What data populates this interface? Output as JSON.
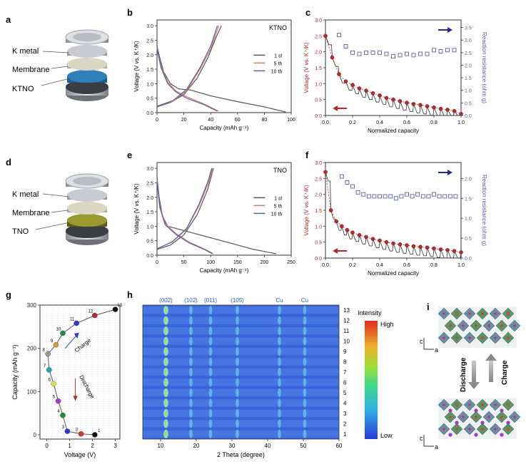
{
  "panel_letters": [
    "a",
    "b",
    "c",
    "d",
    "e",
    "f",
    "g",
    "h",
    "i"
  ],
  "cell_a": {
    "labels": [
      "K metal",
      "Membrane",
      "KTNO"
    ],
    "colors": {
      "top": "#b8bcc2",
      "membrane": "#c9c6b3",
      "electrode": "#2f7fb8"
    }
  },
  "cell_d": {
    "labels": [
      "K metal",
      "Membrane",
      "TNO"
    ],
    "colors": {
      "top": "#b8bcc2",
      "membrane": "#c9c6b3",
      "electrode": "#8a8a2e"
    }
  },
  "chart_data": [
    {
      "id": "b",
      "type": "line",
      "tag": "KTNO",
      "xlabel": "Capacity (mAh g⁻¹)",
      "ylabel": "Voltage (V vs. K⁺/K)",
      "xlim": [
        0,
        100
      ],
      "ylim": [
        0,
        3.2
      ],
      "xticks": [
        "0",
        "20",
        "40",
        "60",
        "80",
        "100"
      ],
      "yticks": [
        "0.0",
        "0.5",
        "1.0",
        "1.5",
        "2.0",
        "2.5",
        "3.0"
      ],
      "series": [
        {
          "name": "1 st",
          "color": "#555555",
          "discharge": [
            [
              0,
              2.3
            ],
            [
              2,
              1.9
            ],
            [
              5,
              1.4
            ],
            [
              10,
              1.0
            ],
            [
              16,
              0.82
            ],
            [
              25,
              0.78
            ],
            [
              40,
              0.58
            ],
            [
              60,
              0.38
            ],
            [
              80,
              0.2
            ],
            [
              96,
              0.02
            ]
          ],
          "charge": [
            [
              0,
              0.2
            ],
            [
              10,
              0.35
            ],
            [
              20,
              0.62
            ],
            [
              30,
              1.2
            ],
            [
              38,
              1.9
            ],
            [
              44,
              2.6
            ],
            [
              48,
              3.0
            ]
          ]
        },
        {
          "name": "5 th",
          "color": "#d27a6a",
          "discharge": [
            [
              0,
              2.25
            ],
            [
              3,
              1.6
            ],
            [
              8,
              1.05
            ],
            [
              14,
              0.75
            ],
            [
              22,
              0.55
            ],
            [
              35,
              0.3
            ],
            [
              46,
              0.05
            ]
          ],
          "charge": [
            [
              0,
              0.22
            ],
            [
              12,
              0.4
            ],
            [
              22,
              0.75
            ],
            [
              32,
              1.5
            ],
            [
              40,
              2.2
            ],
            [
              46,
              3.0
            ]
          ]
        },
        {
          "name": "10 th",
          "color": "#5a5fa8",
          "discharge": [
            [
              0,
              2.2
            ],
            [
              3,
              1.55
            ],
            [
              8,
              1.0
            ],
            [
              14,
              0.72
            ],
            [
              22,
              0.5
            ],
            [
              35,
              0.27
            ],
            [
              45,
              0.05
            ]
          ],
          "charge": [
            [
              0,
              0.22
            ],
            [
              12,
              0.42
            ],
            [
              22,
              0.8
            ],
            [
              32,
              1.55
            ],
            [
              40,
              2.3
            ],
            [
              45,
              3.0
            ]
          ]
        }
      ],
      "legend_position": "right"
    },
    {
      "id": "c",
      "type": "line",
      "xlabel": "Normalized capacity",
      "ylabel": "Voltage (V vs. K⁺/K)",
      "y2label": "Reaction resistance (ohm g)",
      "xlim": [
        0,
        1.0
      ],
      "ylim": [
        0,
        3.0
      ],
      "y2lim": [
        0,
        3.8
      ],
      "xticks": [
        "0.0",
        "0.2",
        "0.4",
        "0.6",
        "0.8",
        "1.0"
      ],
      "yticks": [
        "0.0",
        "0.5",
        "1.0",
        "1.5",
        "2.0",
        "2.5",
        "3.0"
      ],
      "y2ticks": [
        "0.0",
        "0.5",
        "1.0",
        "1.5",
        "2.0",
        "2.5",
        "3.0",
        "3.5"
      ],
      "voltage_points": [
        [
          0.0,
          2.5
        ],
        [
          0.05,
          1.82
        ],
        [
          0.1,
          1.3
        ],
        [
          0.15,
          1.07
        ],
        [
          0.2,
          0.96
        ],
        [
          0.25,
          0.85
        ],
        [
          0.3,
          0.78
        ],
        [
          0.35,
          0.7
        ],
        [
          0.4,
          0.63
        ],
        [
          0.45,
          0.55
        ],
        [
          0.5,
          0.5
        ],
        [
          0.55,
          0.45
        ],
        [
          0.6,
          0.4
        ],
        [
          0.65,
          0.36
        ],
        [
          0.7,
          0.33
        ],
        [
          0.75,
          0.29
        ],
        [
          0.8,
          0.25
        ],
        [
          0.85,
          0.21
        ],
        [
          0.9,
          0.18
        ],
        [
          0.95,
          0.14
        ],
        [
          1.0,
          0.05
        ]
      ],
      "resistance_points": [
        [
          0.1,
          3.2
        ],
        [
          0.15,
          2.75
        ],
        [
          0.2,
          2.5
        ],
        [
          0.25,
          2.45
        ],
        [
          0.3,
          2.5
        ],
        [
          0.35,
          2.5
        ],
        [
          0.4,
          2.5
        ],
        [
          0.45,
          2.45
        ],
        [
          0.5,
          2.35
        ],
        [
          0.55,
          2.4
        ],
        [
          0.6,
          2.45
        ],
        [
          0.65,
          2.4
        ],
        [
          0.7,
          2.45
        ],
        [
          0.75,
          2.45
        ],
        [
          0.8,
          2.6
        ],
        [
          0.85,
          2.55
        ],
        [
          0.9,
          2.6
        ],
        [
          0.95,
          2.6
        ]
      ],
      "colors": {
        "voltage": "#b52a2a",
        "resistance": "#5a5fa8",
        "arrow_left": "#b52a2a",
        "arrow_right": "#1f2a8a"
      }
    },
    {
      "id": "e",
      "type": "line",
      "tag": "TNO",
      "xlabel": "Capacity (mAh g⁻¹)",
      "ylabel": "Voltage (V vs. K⁺/K)",
      "xlim": [
        0,
        250
      ],
      "ylim": [
        0,
        3.2
      ],
      "xticks": [
        "0",
        "50",
        "100",
        "150",
        "200",
        "250"
      ],
      "yticks": [
        "0.0",
        "0.5",
        "1.0",
        "1.5",
        "2.0",
        "2.5",
        "3.0"
      ],
      "series": [
        {
          "name": "1 st",
          "color": "#555555",
          "discharge": [
            [
              0,
              2.7
            ],
            [
              4,
              2.0
            ],
            [
              10,
              1.35
            ],
            [
              20,
              1.0
            ],
            [
              40,
              0.9
            ],
            [
              80,
              0.7
            ],
            [
              130,
              0.45
            ],
            [
              180,
              0.2
            ],
            [
              222,
              0.05
            ]
          ],
          "charge": [
            [
              0,
              0.2
            ],
            [
              25,
              0.35
            ],
            [
              50,
              0.7
            ],
            [
              75,
              1.4
            ],
            [
              95,
              2.3
            ],
            [
              105,
              3.0
            ]
          ]
        },
        {
          "name": "5 th",
          "color": "#d27a6a",
          "discharge": [
            [
              0,
              2.6
            ],
            [
              5,
              1.7
            ],
            [
              15,
              1.1
            ],
            [
              35,
              0.75
            ],
            [
              60,
              0.45
            ],
            [
              90,
              0.2
            ],
            [
              105,
              0.05
            ]
          ],
          "charge": [
            [
              0,
              0.22
            ],
            [
              28,
              0.45
            ],
            [
              55,
              0.9
            ],
            [
              78,
              1.7
            ],
            [
              96,
              2.5
            ],
            [
              103,
              3.0
            ]
          ]
        },
        {
          "name": "10 th",
          "color": "#5a5fa8",
          "discharge": [
            [
              0,
              2.55
            ],
            [
              5,
              1.65
            ],
            [
              15,
              1.05
            ],
            [
              35,
              0.72
            ],
            [
              60,
              0.42
            ],
            [
              90,
              0.18
            ],
            [
              103,
              0.05
            ]
          ],
          "charge": [
            [
              0,
              0.22
            ],
            [
              28,
              0.46
            ],
            [
              55,
              0.92
            ],
            [
              78,
              1.75
            ],
            [
              95,
              2.55
            ],
            [
              102,
              3.0
            ]
          ]
        }
      ],
      "legend_position": "right"
    },
    {
      "id": "f",
      "type": "line",
      "xlabel": "Normalized capacity",
      "ylabel": "Voltage (V vs. K⁺/K)",
      "y2label": "Reaction resistance (ohm g)",
      "xlim": [
        0,
        1.0
      ],
      "ylim": [
        0,
        3.0
      ],
      "y2lim": [
        0,
        2.4
      ],
      "xticks": [
        "0.0",
        "0.2",
        "0.4",
        "0.6",
        "0.8",
        "1.0"
      ],
      "yticks": [
        "0.0",
        "0.5",
        "1.0",
        "1.5",
        "2.0",
        "2.5",
        "3.0"
      ],
      "y2ticks": [
        "0.0",
        "0.5",
        "1.0",
        "1.5",
        "2.0"
      ],
      "voltage_points": [
        [
          0.0,
          2.7
        ],
        [
          0.04,
          1.5
        ],
        [
          0.08,
          1.15
        ],
        [
          0.12,
          1.0
        ],
        [
          0.16,
          0.88
        ],
        [
          0.2,
          0.8
        ],
        [
          0.25,
          0.72
        ],
        [
          0.3,
          0.66
        ],
        [
          0.35,
          0.6
        ],
        [
          0.4,
          0.55
        ],
        [
          0.45,
          0.5
        ],
        [
          0.5,
          0.46
        ],
        [
          0.55,
          0.43
        ],
        [
          0.6,
          0.4
        ],
        [
          0.65,
          0.37
        ],
        [
          0.7,
          0.35
        ],
        [
          0.75,
          0.33
        ],
        [
          0.8,
          0.3
        ],
        [
          0.85,
          0.27
        ],
        [
          0.9,
          0.25
        ],
        [
          0.95,
          0.22
        ],
        [
          1.0,
          0.18
        ]
      ],
      "resistance_points": [
        [
          0.12,
          2.05
        ],
        [
          0.16,
          1.9
        ],
        [
          0.2,
          1.8
        ],
        [
          0.24,
          1.65
        ],
        [
          0.28,
          1.6
        ],
        [
          0.32,
          1.55
        ],
        [
          0.36,
          1.55
        ],
        [
          0.4,
          1.55
        ],
        [
          0.44,
          1.55
        ],
        [
          0.48,
          1.55
        ],
        [
          0.52,
          1.5
        ],
        [
          0.56,
          1.55
        ],
        [
          0.6,
          1.6
        ],
        [
          0.64,
          1.55
        ],
        [
          0.68,
          1.6
        ],
        [
          0.72,
          1.55
        ],
        [
          0.76,
          1.55
        ],
        [
          0.8,
          1.6
        ],
        [
          0.84,
          1.55
        ],
        [
          0.88,
          1.55
        ],
        [
          0.92,
          1.55
        ],
        [
          0.96,
          1.55
        ]
      ],
      "colors": {
        "voltage": "#b52a2a",
        "resistance": "#5a5fa8",
        "arrow_left": "#b52a2a",
        "arrow_right": "#1f2a8a"
      }
    },
    {
      "id": "g",
      "type": "scatter",
      "xlabel": "Voltage (V)",
      "ylabel": "Capacity (mAh g⁻¹)",
      "xlim": [
        -0.3,
        3.2
      ],
      "ylim": [
        -10,
        300
      ],
      "xticks": [
        "0",
        "1",
        "2",
        "3"
      ],
      "yticks": [
        "0",
        "100",
        "200",
        "300"
      ],
      "points": [
        {
          "n": "1",
          "v": 2.1,
          "c": 0,
          "color": "#111111"
        },
        {
          "n": "2",
          "v": 1.5,
          "c": 2,
          "color": "#d23a2a"
        },
        {
          "n": "3",
          "v": 0.9,
          "c": 8,
          "color": "#2a3ad2"
        },
        {
          "n": "4",
          "v": 0.7,
          "c": 45,
          "color": "#2a8a3a"
        },
        {
          "n": "5",
          "v": 0.5,
          "c": 78,
          "color": "#a03ad2"
        },
        {
          "n": "6",
          "v": 0.3,
          "c": 118,
          "color": "#e0e04a"
        },
        {
          "n": "7",
          "v": 0.1,
          "c": 150,
          "color": "#2aa0b0"
        },
        {
          "n": "8",
          "v": 0.05,
          "c": 187,
          "color": "#999999"
        },
        {
          "n": "9",
          "v": 0.4,
          "c": 208,
          "color": "#d2a02a"
        },
        {
          "n": "10",
          "v": 0.7,
          "c": 235,
          "color": "#2a8a3a"
        },
        {
          "n": "11",
          "v": 1.3,
          "c": 258,
          "color": "#2a3ad2"
        },
        {
          "n": "12",
          "v": 2.1,
          "c": 276,
          "color": "#b52a2a"
        },
        {
          "n": "13",
          "v": 3.0,
          "c": 290,
          "color": "#111111"
        }
      ],
      "labels": {
        "charge": "Charge",
        "discharge": "Discharge"
      }
    },
    {
      "id": "h",
      "type": "heatmap",
      "xlabel": "2 Theta (degree)",
      "xlim": [
        5,
        60
      ],
      "xticks": [
        "10",
        "20",
        "30",
        "40",
        "50",
        "60"
      ],
      "peaks": [
        {
          "label": "(002)",
          "x": 11.5
        },
        {
          "label": "(102)",
          "x": 18.5
        },
        {
          "label": "(011)",
          "x": 24.0
        },
        {
          "label": "(105)",
          "x": 31.5
        },
        {
          "label": "Cu",
          "x": 43.3
        },
        {
          "label": "Cu",
          "x": 50.4
        }
      ],
      "rows": [
        "13",
        "12",
        "11",
        "10",
        "9",
        "8",
        "7",
        "6",
        "5",
        "4",
        "3",
        "2",
        "1"
      ],
      "colorbar": {
        "title": "Intensity",
        "high": "High",
        "low": "Low"
      }
    }
  ],
  "panel_i": {
    "top_axis": [
      "c",
      "a"
    ],
    "bottom_axis": [
      "c",
      "a"
    ],
    "discharge": "Discharge",
    "charge": "Charge"
  }
}
